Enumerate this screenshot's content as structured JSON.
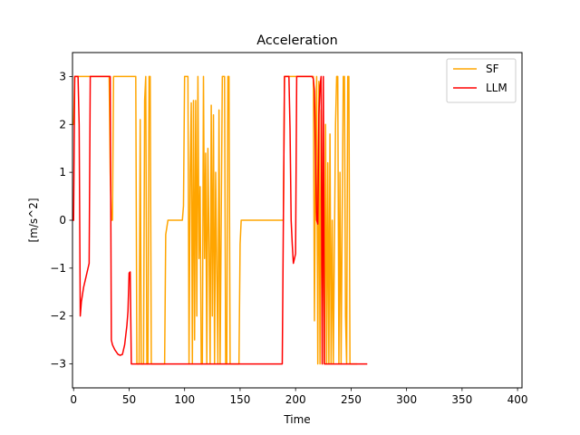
{
  "chart_data": {
    "type": "line",
    "title": "Acceleration",
    "xlabel": "Time",
    "ylabel": "[m/s^2]",
    "xlim": [
      -1,
      404
    ],
    "ylim": [
      -3.5,
      3.5
    ],
    "x_ticks": [
      0,
      50,
      100,
      150,
      200,
      250,
      300,
      350,
      400
    ],
    "y_ticks": [
      -3,
      -2,
      -1,
      0,
      1,
      2,
      3
    ],
    "grid": false,
    "legend_position": "upper right",
    "series": [
      {
        "name": "SF",
        "color": "#ffa500",
        "points": [
          [
            0,
            2.0
          ],
          [
            1,
            3.0
          ],
          [
            32,
            3.0
          ],
          [
            33,
            1.0
          ],
          [
            34,
            0.0
          ],
          [
            35,
            0.0
          ],
          [
            36,
            3.0
          ],
          [
            50,
            3.0
          ],
          [
            51,
            3.0
          ],
          [
            53,
            3.0
          ],
          [
            56,
            3.0
          ],
          [
            57,
            -3.0
          ],
          [
            59,
            -3.0
          ],
          [
            60,
            2.1
          ],
          [
            61,
            -3.0
          ],
          [
            63,
            -3.0
          ],
          [
            64,
            2.5
          ],
          [
            65,
            3.0
          ],
          [
            66,
            -3.0
          ],
          [
            67,
            -3.0
          ],
          [
            68,
            3.0
          ],
          [
            69,
            3.0
          ],
          [
            70,
            -3.0
          ],
          [
            82,
            -3.0
          ],
          [
            83,
            -0.3
          ],
          [
            85,
            0.0
          ],
          [
            98,
            0.0
          ],
          [
            99,
            0.3
          ],
          [
            100,
            3.0
          ],
          [
            103,
            3.0
          ],
          [
            104,
            -3.0
          ],
          [
            105,
            1.0
          ],
          [
            106,
            2.45
          ],
          [
            107,
            -3.0
          ],
          [
            108,
            2.5
          ],
          [
            109,
            -2.5
          ],
          [
            110,
            2.5
          ],
          [
            111,
            -2.0
          ],
          [
            112,
            3.0
          ],
          [
            113,
            -0.8
          ],
          [
            114,
            0.7
          ],
          [
            115,
            -3.0
          ],
          [
            116,
            -3.0
          ],
          [
            117,
            3.0
          ],
          [
            118,
            -0.8
          ],
          [
            119,
            1.4
          ],
          [
            120,
            -3.0
          ],
          [
            121,
            1.5
          ],
          [
            122,
            -0.5
          ],
          [
            123,
            -3.0
          ],
          [
            124,
            2.4
          ],
          [
            125,
            -2.0
          ],
          [
            126,
            2.2
          ],
          [
            127,
            -3.0
          ],
          [
            128,
            1.0
          ],
          [
            129,
            -1.0
          ],
          [
            130,
            -3.0
          ],
          [
            131,
            2.3
          ],
          [
            132,
            -3.0
          ],
          [
            133,
            0.0
          ],
          [
            134,
            3.0
          ],
          [
            136,
            3.0
          ],
          [
            137,
            -3.0
          ],
          [
            138,
            -3.0
          ],
          [
            139,
            3.0
          ],
          [
            140,
            3.0
          ],
          [
            141,
            -3.0
          ],
          [
            149,
            -3.0
          ],
          [
            150,
            -0.5
          ],
          [
            151,
            0.0
          ],
          [
            189,
            0.0
          ],
          [
            190,
            3.0
          ],
          [
            193,
            3.0
          ],
          [
            195,
            3.0
          ],
          [
            216,
            3.0
          ],
          [
            217,
            -2.1
          ],
          [
            218,
            1.5
          ],
          [
            219,
            3.0
          ],
          [
            220,
            -3.0
          ],
          [
            221,
            2.9
          ],
          [
            222,
            -3.0
          ],
          [
            223,
            2.3
          ],
          [
            224,
            -3.0
          ],
          [
            225,
            1.8
          ],
          [
            226,
            -3.0
          ],
          [
            227,
            2.0
          ],
          [
            228,
            -3.0
          ],
          [
            229,
            1.2
          ],
          [
            230,
            -3.0
          ],
          [
            231,
            1.8
          ],
          [
            232,
            -3.0
          ],
          [
            233,
            0.0
          ],
          [
            234,
            -3.0
          ],
          [
            236,
            2.0
          ],
          [
            237,
            3.0
          ],
          [
            238,
            3.0
          ],
          [
            239,
            -3.0
          ],
          [
            240,
            1.0
          ],
          [
            241,
            -3.0
          ],
          [
            243,
            3.0
          ],
          [
            244,
            3.0
          ],
          [
            245,
            -2.0
          ],
          [
            246,
            -3.0
          ],
          [
            247,
            3.0
          ],
          [
            248,
            3.0
          ],
          [
            249,
            -3.0
          ],
          [
            255,
            -3.0
          ]
        ]
      },
      {
        "name": "LLM",
        "color": "#ff0000",
        "points": [
          [
            0,
            0.0
          ],
          [
            1,
            3.0
          ],
          [
            4,
            3.0
          ],
          [
            5,
            2.0
          ],
          [
            6,
            -2.0
          ],
          [
            7,
            -1.7
          ],
          [
            9,
            -1.4
          ],
          [
            11,
            -1.2
          ],
          [
            13,
            -1.0
          ],
          [
            14,
            -0.9
          ],
          [
            15,
            3.0
          ],
          [
            16,
            3.0
          ],
          [
            33,
            3.0
          ],
          [
            34,
            -2.5
          ],
          [
            35,
            -2.6
          ],
          [
            37,
            -2.7
          ],
          [
            40,
            -2.8
          ],
          [
            42,
            -2.82
          ],
          [
            44,
            -2.8
          ],
          [
            46,
            -2.6
          ],
          [
            48,
            -2.2
          ],
          [
            49,
            -1.9
          ],
          [
            50,
            -1.1
          ],
          [
            51,
            -1.08
          ],
          [
            52,
            -3.0
          ],
          [
            188,
            -3.0
          ],
          [
            189,
            0.0
          ],
          [
            190,
            3.0
          ],
          [
            194,
            3.0
          ],
          [
            195,
            1.9
          ],
          [
            196,
            0.0
          ],
          [
            197,
            -0.5
          ],
          [
            198,
            -0.9
          ],
          [
            199,
            -0.8
          ],
          [
            200,
            -0.7
          ],
          [
            201,
            3.0
          ],
          [
            215,
            3.0
          ],
          [
            216,
            2.95
          ],
          [
            217,
            2.7
          ],
          [
            218,
            1.2
          ],
          [
            219,
            0.0
          ],
          [
            220,
            -0.08
          ],
          [
            221,
            2.2
          ],
          [
            222,
            2.8
          ],
          [
            223,
            3.0
          ],
          [
            224,
            -3.0
          ],
          [
            225,
            3.0
          ],
          [
            226,
            -3.0
          ],
          [
            264,
            -3.0
          ]
        ]
      }
    ]
  }
}
